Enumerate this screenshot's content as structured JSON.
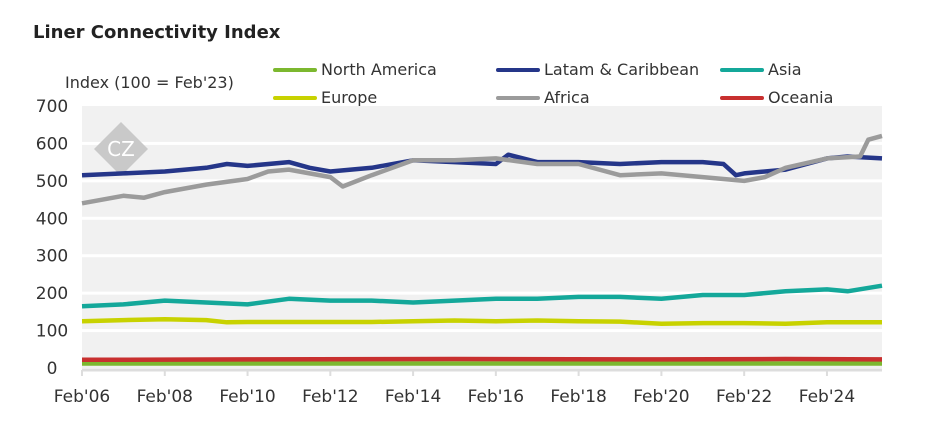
{
  "chart_data": {
    "type": "line",
    "title": "Liner Connectivity Index",
    "ylabel": "Index (100 = Feb'23)",
    "xlabel": "",
    "ylim": [
      0,
      700
    ],
    "yticks": [
      0,
      100,
      200,
      300,
      400,
      500,
      600,
      700
    ],
    "xticks": [
      {
        "label": "Feb'06",
        "x": 2006
      },
      {
        "label": "Feb'08",
        "x": 2008
      },
      {
        "label": "Feb'10",
        "x": 2010
      },
      {
        "label": "Feb'12",
        "x": 2012
      },
      {
        "label": "Feb'14",
        "x": 2014
      },
      {
        "label": "Feb'16",
        "x": 2016
      },
      {
        "label": "Feb'18",
        "x": 2018
      },
      {
        "label": "Feb'20",
        "x": 2020
      },
      {
        "label": "Feb'22",
        "x": 2022
      },
      {
        "label": "Feb'24",
        "x": 2024
      }
    ],
    "xlim": [
      2006,
      2025.33
    ],
    "grid": true,
    "legend": "top",
    "series": [
      {
        "name": "North America",
        "color": "#7cb82f",
        "x": [
          2006,
          2010,
          2015,
          2020,
          2023,
          2025.33
        ],
        "values": [
          12,
          12,
          12,
          12,
          12,
          12
        ]
      },
      {
        "name": "Latam & Caribbean",
        "color": "#253689",
        "x": [
          2006,
          2007,
          2008,
          2009,
          2009.5,
          2010,
          2011,
          2011.5,
          2012,
          2013,
          2014,
          2015,
          2016,
          2016.3,
          2017,
          2018,
          2019,
          2020,
          2021,
          2021.5,
          2021.8,
          2022,
          2023,
          2024,
          2024.5,
          2025.33
        ],
        "values": [
          515,
          520,
          525,
          535,
          545,
          540,
          550,
          535,
          525,
          535,
          555,
          550,
          545,
          570,
          550,
          550,
          545,
          550,
          550,
          545,
          515,
          520,
          530,
          560,
          565,
          560
        ]
      },
      {
        "name": "Asia",
        "color": "#14a89a",
        "x": [
          2006,
          2007,
          2008,
          2009,
          2010,
          2011,
          2012,
          2013,
          2014,
          2015,
          2016,
          2017,
          2018,
          2019,
          2020,
          2021,
          2022,
          2023,
          2024,
          2024.5,
          2025.33
        ],
        "values": [
          165,
          170,
          180,
          175,
          170,
          185,
          180,
          180,
          175,
          180,
          185,
          185,
          190,
          190,
          185,
          195,
          195,
          205,
          210,
          205,
          220
        ]
      },
      {
        "name": "Europe",
        "color": "#c8d200",
        "x": [
          2006,
          2007,
          2008,
          2009,
          2009.5,
          2010,
          2011,
          2012,
          2013,
          2014,
          2015,
          2016,
          2017,
          2018,
          2019,
          2020,
          2021,
          2022,
          2023,
          2024,
          2025.33
        ],
        "values": [
          125,
          128,
          130,
          128,
          122,
          123,
          123,
          123,
          123,
          125,
          127,
          125,
          127,
          125,
          124,
          118,
          120,
          120,
          118,
          122,
          122
        ]
      },
      {
        "name": "Africa",
        "color": "#9b9b9b",
        "x": [
          2006,
          2007,
          2007.5,
          2008,
          2009,
          2010,
          2010.5,
          2011,
          2012,
          2012.3,
          2013,
          2014,
          2015,
          2016,
          2017,
          2018,
          2019,
          2020,
          2021,
          2022,
          2022.5,
          2023,
          2024,
          2024.8,
          2025,
          2025.33
        ],
        "values": [
          440,
          460,
          455,
          470,
          490,
          505,
          525,
          530,
          510,
          485,
          515,
          555,
          555,
          560,
          545,
          545,
          515,
          520,
          510,
          500,
          510,
          535,
          560,
          565,
          610,
          620
        ]
      },
      {
        "name": "Oceania",
        "color": "#c8302f",
        "x": [
          2006,
          2010,
          2015,
          2020,
          2023,
          2025.33
        ],
        "values": [
          22,
          23,
          24,
          23,
          24,
          23
        ]
      }
    ]
  },
  "watermark": "CZ"
}
